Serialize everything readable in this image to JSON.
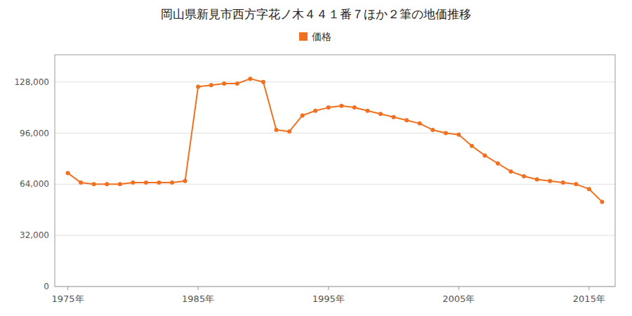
{
  "chart_data": {
    "type": "line",
    "title": "岡山県新見市西方字花ノ木４４１番７ほか２筆の地価推移",
    "x": [
      1975,
      1976,
      1977,
      1978,
      1979,
      1980,
      1981,
      1982,
      1983,
      1984,
      1985,
      1986,
      1987,
      1988,
      1989,
      1990,
      1991,
      1992,
      1993,
      1994,
      1995,
      1996,
      1997,
      1998,
      1999,
      2000,
      2001,
      2002,
      2003,
      2004,
      2005,
      2006,
      2007,
      2008,
      2009,
      2010,
      2011,
      2012,
      2013,
      2014,
      2015,
      2016
    ],
    "series": [
      {
        "name": "価格",
        "color": "#f07020",
        "marker": "circle",
        "values": [
          71000,
          65000,
          64000,
          64000,
          64000,
          65000,
          65000,
          65000,
          65000,
          66000,
          125000,
          126000,
          127000,
          127000,
          130000,
          128000,
          98000,
          97000,
          107000,
          110000,
          112000,
          113000,
          112000,
          110000,
          108000,
          106000,
          104000,
          102000,
          98000,
          96000,
          95000,
          88000,
          82000,
          77000,
          72000,
          69000,
          67000,
          66000,
          65000,
          64000,
          61000,
          53000
        ]
      }
    ],
    "xlim": [
      1974,
      2017
    ],
    "xticks": [
      {
        "value": 1975,
        "label": "1975年"
      },
      {
        "value": 1985,
        "label": "1985年"
      },
      {
        "value": 1995,
        "label": "1995年"
      },
      {
        "value": 2005,
        "label": "2005年"
      },
      {
        "value": 2015,
        "label": "2015年"
      }
    ],
    "ylim": [
      0,
      145000
    ],
    "yticks": [
      0,
      {
        "value": 32000,
        "label": "32,000"
      },
      {
        "value": 64000,
        "label": "64,000"
      },
      {
        "value": 96000,
        "label": "96,000"
      },
      {
        "value": 128000,
        "label": "128,000"
      }
    ],
    "grid": true,
    "legend": "top"
  }
}
